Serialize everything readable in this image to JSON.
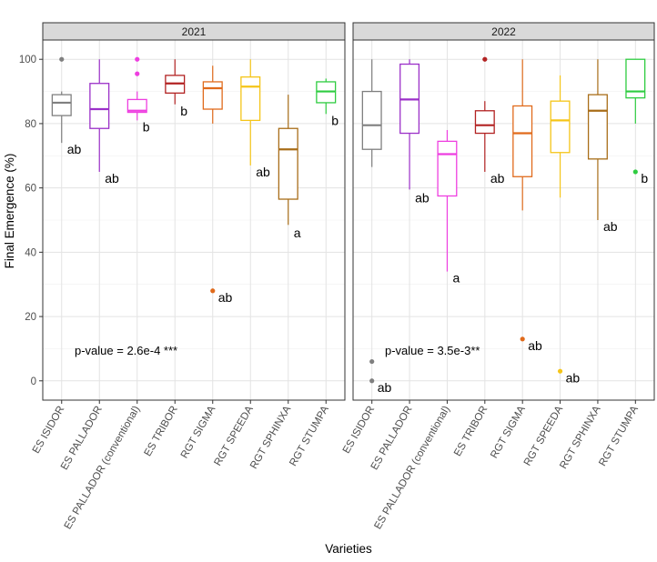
{
  "chart_data": {
    "type": "box",
    "xlabel": "Varieties",
    "ylabel": "Final Emergence (%)",
    "ylim": [
      -6,
      106
    ],
    "yticks": [
      0,
      20,
      40,
      60,
      80,
      100
    ],
    "grid": true,
    "legend": "none",
    "categories": [
      "ES ISIDOR",
      "ES PALLADOR",
      "ES PALLADOR (conventional)",
      "ES TRIBOR",
      "RGT SIGMA",
      "RGT SPEEDA",
      "RGT SPHINXA",
      "RGT STUMPA"
    ],
    "colors": [
      "#7f7f7f",
      "#9b30c8",
      "#ee3ee0",
      "#b22222",
      "#e06a1b",
      "#f5c518",
      "#a86d18",
      "#2ecc40"
    ],
    "panels": [
      {
        "title": "2021",
        "pvalue_text": "p-value = 2.6e-4 ***",
        "boxes": [
          {
            "category": "ES ISIDOR",
            "min": 74,
            "q1": 82.5,
            "median": 86.5,
            "q3": 89,
            "max": 90,
            "outliers": [
              100
            ],
            "letter": "ab",
            "letter_y": 72
          },
          {
            "category": "ES PALLADOR",
            "min": 65,
            "q1": 78.5,
            "median": 84.5,
            "q3": 92.5,
            "max": 100,
            "outliers": [],
            "letter": "ab",
            "letter_y": 63
          },
          {
            "category": "ES PALLADOR (conventional)",
            "min": 81,
            "q1": 83.5,
            "median": 84,
            "q3": 87.5,
            "max": 90,
            "outliers": [
              95.5,
              100
            ],
            "letter": "b",
            "letter_y": 79
          },
          {
            "category": "ES TRIBOR",
            "min": 86,
            "q1": 89.5,
            "median": 92.5,
            "q3": 95,
            "max": 100,
            "outliers": [],
            "letter": "b",
            "letter_y": 84
          },
          {
            "category": "RGT SIGMA",
            "min": 80,
            "q1": 84.5,
            "median": 91,
            "q3": 93,
            "max": 98,
            "outliers": [
              28
            ],
            "letter": "ab",
            "letter_y": 26
          },
          {
            "category": "RGT SPEEDA",
            "min": 67,
            "q1": 81,
            "median": 91.5,
            "q3": 94.5,
            "max": 100,
            "outliers": [],
            "letter": "ab",
            "letter_y": 65
          },
          {
            "category": "RGT SPHINXA",
            "min": 48.5,
            "q1": 56.5,
            "median": 72,
            "q3": 78.5,
            "max": 89,
            "outliers": [],
            "letter": "a",
            "letter_y": 46
          },
          {
            "category": "RGT STUMPA",
            "min": 83,
            "q1": 86.5,
            "median": 90,
            "q3": 93,
            "max": 94,
            "outliers": [],
            "letter": "b",
            "letter_y": 81
          }
        ]
      },
      {
        "title": "2022",
        "pvalue_text": "p-value = 3.5e-3**",
        "boxes": [
          {
            "category": "ES ISIDOR",
            "min": 66.5,
            "q1": 72,
            "median": 79.5,
            "q3": 90,
            "max": 100,
            "outliers": [
              6,
              0
            ],
            "letter": "ab",
            "letter_y": -2
          },
          {
            "category": "ES PALLADOR",
            "min": 59.5,
            "q1": 77,
            "median": 87.5,
            "q3": 98.5,
            "max": 100,
            "outliers": [],
            "letter": "ab",
            "letter_y": 57
          },
          {
            "category": "ES PALLADOR (conventional)",
            "min": 34,
            "q1": 57.5,
            "median": 70.5,
            "q3": 74.5,
            "max": 78,
            "outliers": [],
            "letter": "a",
            "letter_y": 32
          },
          {
            "category": "ES TRIBOR",
            "min": 65,
            "q1": 77,
            "median": 79.5,
            "q3": 84,
            "max": 87,
            "outliers": [
              100
            ],
            "letter": "ab",
            "letter_y": 63
          },
          {
            "category": "RGT SIGMA",
            "min": 53,
            "q1": 63.5,
            "median": 77,
            "q3": 85.5,
            "max": 100,
            "outliers": [
              13
            ],
            "letter": "ab",
            "letter_y": 11
          },
          {
            "category": "RGT SPEEDA",
            "min": 57,
            "q1": 71,
            "median": 81,
            "q3": 87,
            "max": 95,
            "outliers": [
              3
            ],
            "letter": "ab",
            "letter_y": 1
          },
          {
            "category": "RGT SPHINXA",
            "min": 50,
            "q1": 69,
            "median": 84,
            "q3": 89,
            "max": 100,
            "outliers": [],
            "letter": "ab",
            "letter_y": 48
          },
          {
            "category": "RGT STUMPA",
            "min": 80,
            "q1": 88,
            "median": 90,
            "q3": 100,
            "max": 100,
            "outliers": [
              65
            ],
            "letter": "b",
            "letter_y": 63
          }
        ]
      }
    ]
  }
}
